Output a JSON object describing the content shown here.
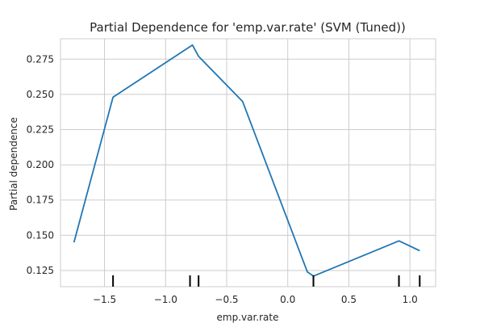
{
  "chart_data": {
    "type": "line",
    "title": "Partial Dependence for 'emp.var.rate' (SVM (Tuned))",
    "xlabel": "emp.var.rate",
    "ylabel": "Partial dependence",
    "xlim": [
      -1.86,
      1.21
    ],
    "ylim": [
      0.1135,
      0.2895
    ],
    "x_ticks": [
      -1.5,
      -1.0,
      -0.5,
      0.0,
      0.5,
      1.0
    ],
    "x_tick_labels": [
      "−1.5",
      "−1.0",
      "−0.5",
      "0.0",
      "0.5",
      "1.0"
    ],
    "y_ticks": [
      0.125,
      0.15,
      0.175,
      0.2,
      0.225,
      0.25,
      0.275
    ],
    "y_tick_labels": [
      "0.125",
      "0.150",
      "0.175",
      "0.200",
      "0.225",
      "0.250",
      "0.275"
    ],
    "grid": true,
    "series": [
      {
        "color": "#1f77b4",
        "x": [
          -1.75,
          -1.43,
          -0.78,
          -0.73,
          -0.37,
          0.16,
          0.21,
          0.91,
          1.08
        ],
        "y": [
          0.145,
          0.248,
          0.285,
          0.277,
          0.245,
          0.124,
          0.121,
          0.146,
          0.139
        ]
      }
    ],
    "rug": {
      "color": "#000000",
      "x": [
        -1.43,
        -0.8,
        -0.73,
        0.21,
        0.91,
        1.08
      ]
    }
  }
}
